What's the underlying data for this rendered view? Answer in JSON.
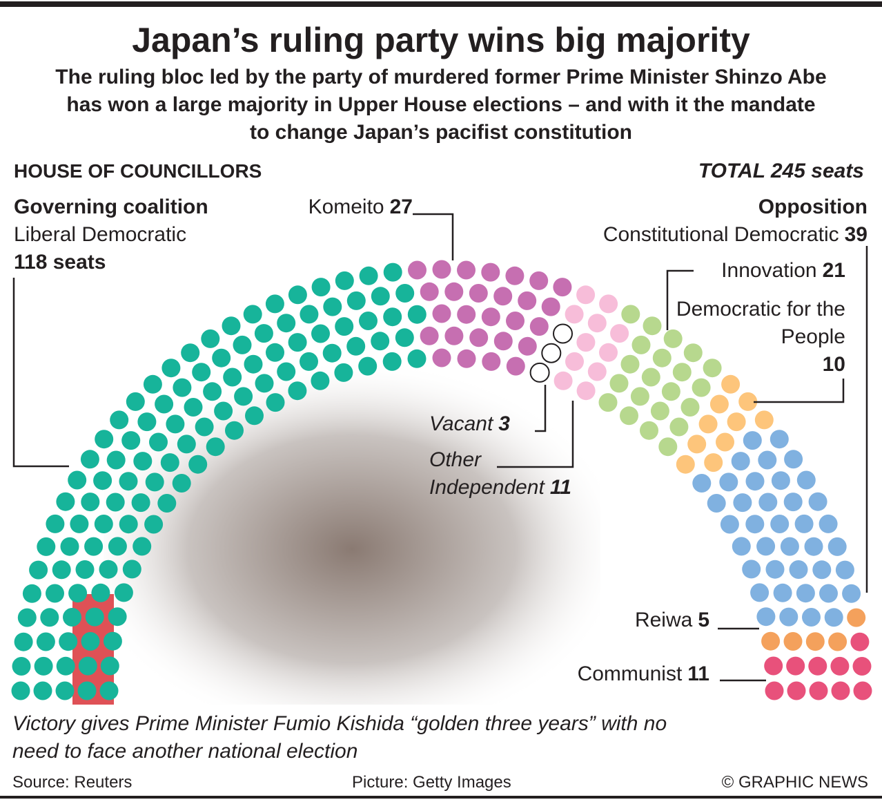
{
  "header": {
    "title": "Japan’s ruling party wins big majority",
    "subtitle": "The ruling bloc led by the party of murdered former Prime Minister Shinzo Abe has won a large majority in Upper House elections – and with it the mandate to change Japan’s pacifist constitution"
  },
  "chart_data": {
    "type": "parliament",
    "section_title": "HOUSE OF COUNCILLORS",
    "total_text": "TOTAL 245 seats",
    "groups": [
      "Governing coalition",
      "Opposition"
    ],
    "categories": [
      "Liberal Democratic",
      "Komeito",
      "Vacant",
      "Other Independent",
      "Innovation",
      "Democratic for the People",
      "Constitutional Democratic",
      "Reiwa",
      "Communist"
    ],
    "values": [
      118,
      27,
      3,
      11,
      21,
      10,
      39,
      5,
      11
    ],
    "value_labels": [
      "118 seats",
      "27",
      "3",
      "11",
      "21",
      "10",
      "39",
      "5",
      "11"
    ],
    "colors": [
      "#17b49a",
      "#c66fb1",
      "#ffffff",
      "#f7bdd9",
      "#b7d88e",
      "#fdc57b",
      "#80b1e0",
      "#f4a15c",
      "#e8517b"
    ]
  },
  "caption": "Victory gives Prime Minister Fumio Kishida “golden three years” with no need to face another national election",
  "footer": {
    "source": "Source: Reuters",
    "picture": "Picture: Getty Images",
    "credit": "© GRAPHIC NEWS"
  }
}
